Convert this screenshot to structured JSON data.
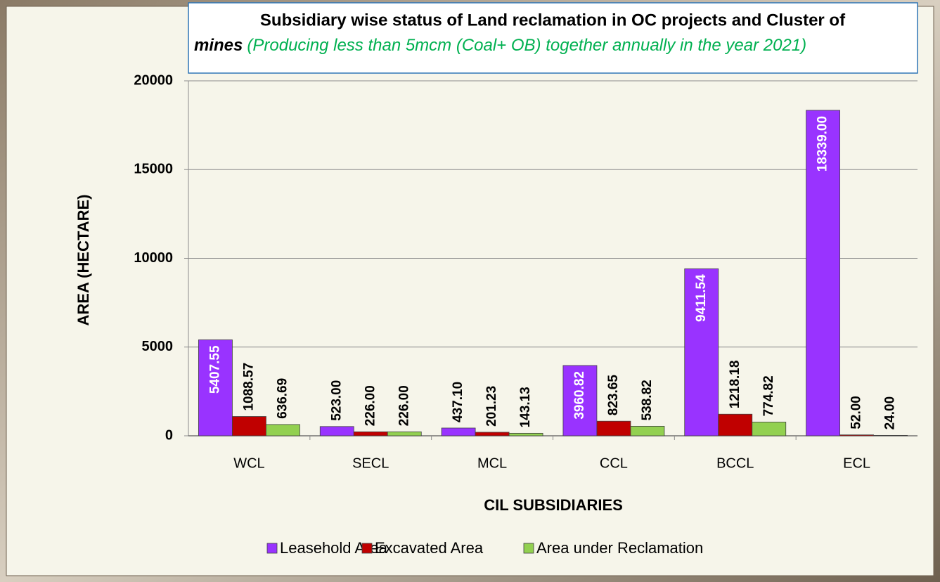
{
  "chart_data": {
    "type": "bar",
    "title": [
      "Subsidiary wise status of Land reclamation in OC projects and Cluster of",
      "mines"
    ],
    "subtitle": "(Producing less than 5mcm (Coal+ OB) together annually in the year 2021)",
    "x_label": "CIL SUBSIDIARIES",
    "y_label": "AREA (HECTARE)",
    "categories": [
      "WCL",
      "SECL",
      "MCL",
      "CCL",
      "BCCL",
      "ECL"
    ],
    "series": [
      {
        "name": "Leasehold Area",
        "color": "#9933ff",
        "values": [
          5407.55,
          523,
          437.1,
          3960.82,
          9411.54,
          18339
        ],
        "value_labels": [
          "5407.55",
          "523.00",
          "437.10",
          "3960.82",
          "9411.54",
          "18339.00"
        ]
      },
      {
        "name": "Excavated Area",
        "color": "#c00000",
        "values": [
          1088.57,
          226,
          201.23,
          823.65,
          1218.18,
          52
        ],
        "value_labels": [
          "1088.57",
          "226.00",
          "201.23",
          "823.65",
          "1218.18",
          "52.00"
        ]
      },
      {
        "name": "Area under Reclamation",
        "color": "#92d050",
        "values": [
          636.69,
          226,
          143.13,
          538.82,
          774.82,
          24
        ],
        "value_labels": [
          "636.69",
          "226.00",
          "143.13",
          "538.82",
          "774.82",
          "24.00"
        ]
      }
    ],
    "ylim": [
      0,
      20000
    ],
    "yticks": [
      0,
      5000,
      10000,
      15000,
      20000
    ],
    "grid": true,
    "legend": "bottom"
  }
}
